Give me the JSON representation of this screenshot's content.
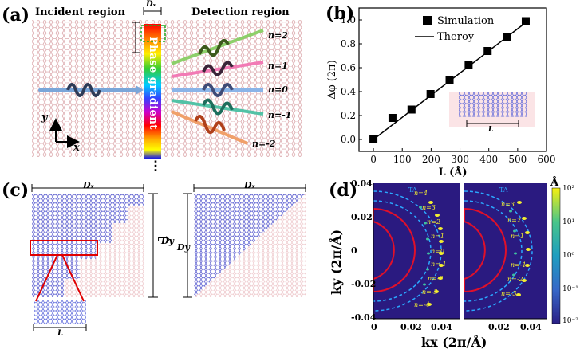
{
  "panels": {
    "a": {
      "label": "(a)",
      "incident_title": "Incident region",
      "detection_title": "Detection region",
      "phase_text": "Phase gradient",
      "dx_label": "Dₓ",
      "y_axis_label": "y",
      "x_axis_label": "x",
      "orders": [
        "n=2",
        "n=1",
        "n=0",
        "n=-1",
        "n=-2"
      ],
      "dots": "⋯"
    },
    "b": {
      "label": "(b)",
      "inset_label": "L"
    },
    "c": {
      "label": "(c)",
      "dx_left": "Dₓ",
      "dx_right": "Dₓ",
      "dy_left": "Dy",
      "dy_right": "Dy",
      "l_label": "L",
      "arrow_glyph": "⇨"
    },
    "d": {
      "label": "(d)",
      "colorbar_unit": "Å",
      "colorbar_ticks": [
        "10²",
        "10¹",
        "10⁰",
        "10⁻¹",
        "10⁻²"
      ],
      "ta_label": "TA",
      "left_orders": [
        "n=4",
        "n=3",
        "n=2",
        "n=1",
        "n=0",
        "n=-1",
        "n=-2",
        "n=-3",
        "n=-4"
      ],
      "right_orders": [
        "n=3",
        "n=2",
        "n=1",
        "n=-1",
        "n=-2",
        "n=-3"
      ]
    }
  },
  "chart_data": [
    {
      "type": "scatter",
      "xlabel": "L (Å)",
      "ylabel": "Δφ (2π)",
      "xlim": [
        -50,
        600
      ],
      "ylim": [
        -0.1,
        1.1
      ],
      "xticks": [
        0,
        100,
        200,
        300,
        400,
        500,
        600
      ],
      "yticks": [
        0.0,
        0.2,
        0.4,
        0.6,
        0.8,
        1.0
      ],
      "legend_position": "top-right",
      "series": [
        {
          "name": "Simulation",
          "marker": "square",
          "color": "#000000",
          "x": [
            0,
            66,
            132,
            198,
            264,
            330,
            396,
            462,
            528
          ],
          "y": [
            0.0,
            0.18,
            0.25,
            0.38,
            0.5,
            0.62,
            0.74,
            0.86,
            0.99
          ]
        },
        {
          "name": "Theroy",
          "marker": "line",
          "color": "#000000",
          "x": [
            0,
            540
          ],
          "y": [
            0.0,
            1.0
          ]
        }
      ]
    },
    {
      "type": "heatmap",
      "xlabel": "kx (2π/Å)",
      "ylabel": "ky (2π/Å)",
      "xlim": [
        0,
        0.05
      ],
      "ylim": [
        -0.04,
        0.04
      ],
      "xticks_left": [
        "0",
        "0.02",
        "0.04"
      ],
      "xticks_right": [
        "0.02",
        "0.04"
      ],
      "yticks": [
        "0.04",
        "0.02",
        "0",
        "-0.02",
        "-0.04"
      ],
      "colorbar_unit": "Å",
      "colorbar_scale": "log",
      "colorbar_range": [
        0.01,
        100
      ]
    }
  ],
  "colors": {
    "graphene_line": "#d9a3a8",
    "blue_lattice": "#5555dd",
    "pink_lattice": "#f3c8cc",
    "highlight_red": "#e00000",
    "cyan_dashed": "#29a3ff",
    "heatmap_bg": "#2b1a7f"
  }
}
